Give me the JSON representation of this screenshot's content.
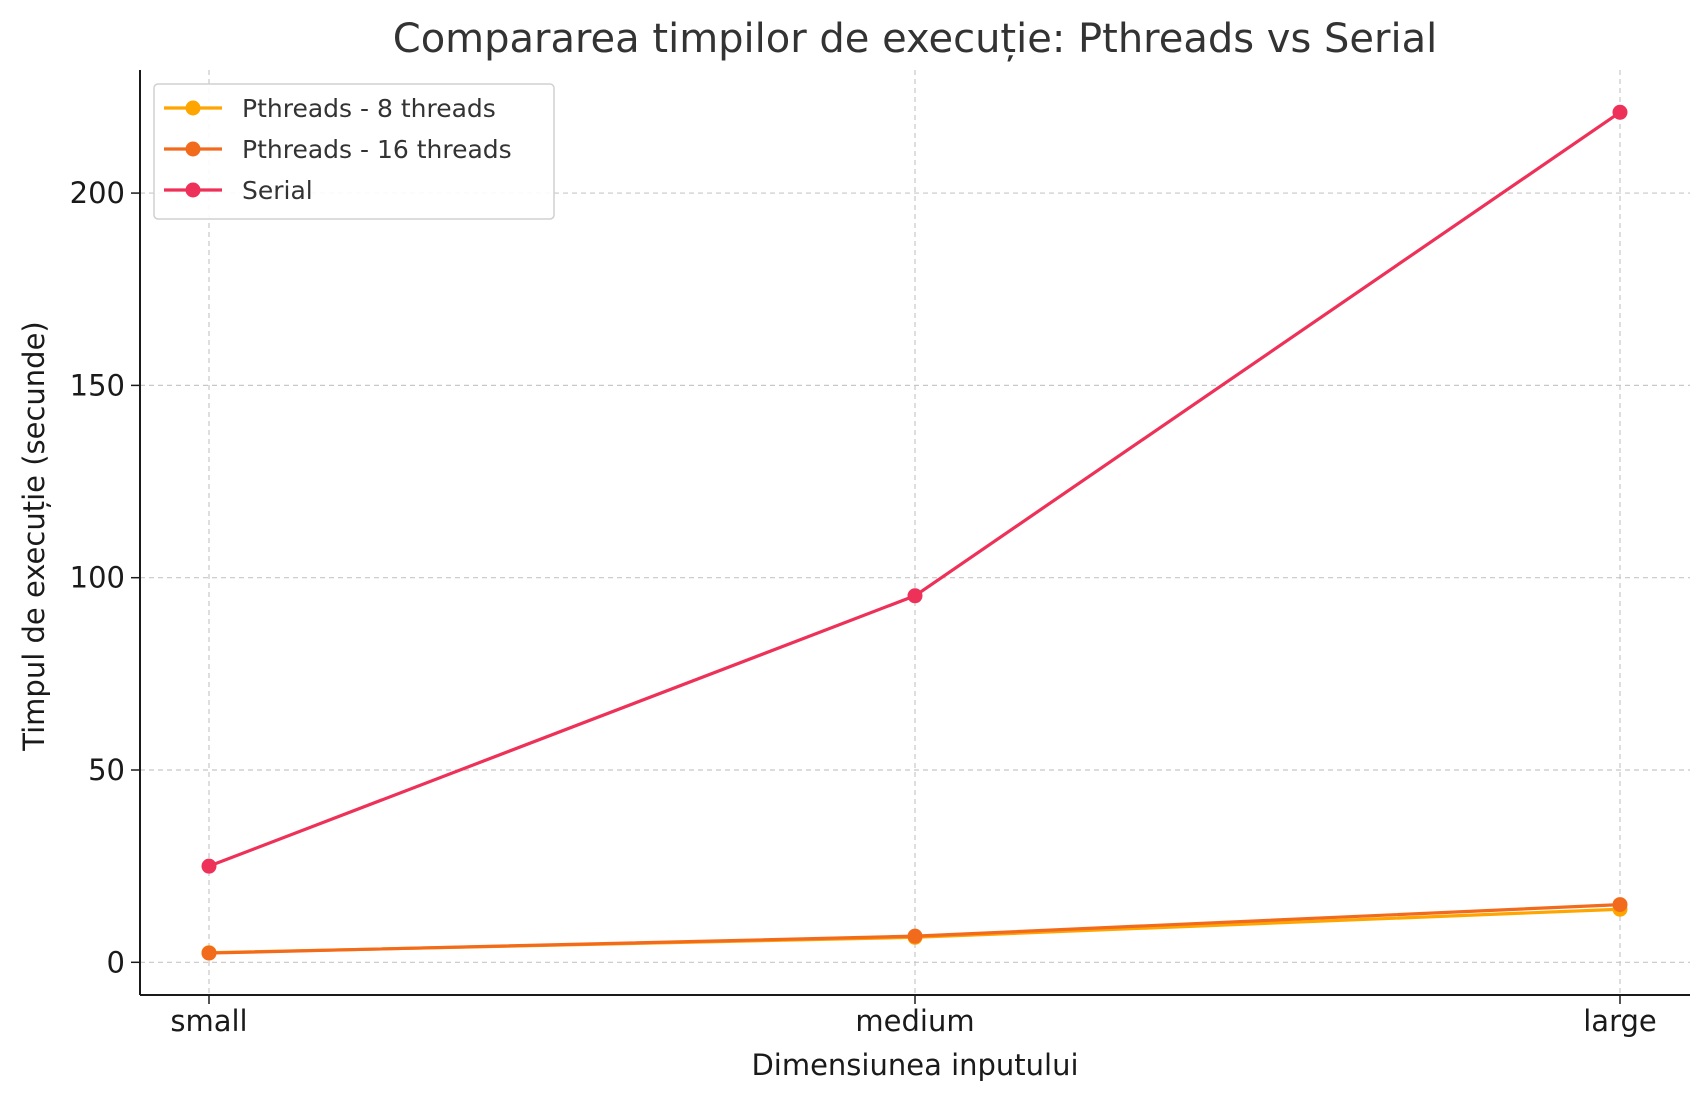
{
  "chart_data": {
    "type": "line",
    "title": "Compararea timpilor de execuție: Pthreads vs Serial",
    "xlabel": "Dimensiunea inputului",
    "ylabel": "Timpul de execuție (secunde)",
    "categories": [
      "small",
      "medium",
      "large"
    ],
    "ylim": [
      -8.5,
      232
    ],
    "yticks": [
      0,
      50,
      100,
      150,
      200
    ],
    "grid": true,
    "legend_position": "top-left",
    "series": [
      {
        "name": "Pthreads - 8 threads",
        "color": "#FFA500",
        "values": [
          2.5,
          6.5,
          13.8
        ]
      },
      {
        "name": "Pthreads - 16 threads",
        "color": "#F26B1D",
        "values": [
          2.4,
          6.8,
          15.0
        ]
      },
      {
        "name": "Serial",
        "color": "#EE3158",
        "values": [
          25.0,
          95.3,
          221.0
        ]
      }
    ]
  }
}
